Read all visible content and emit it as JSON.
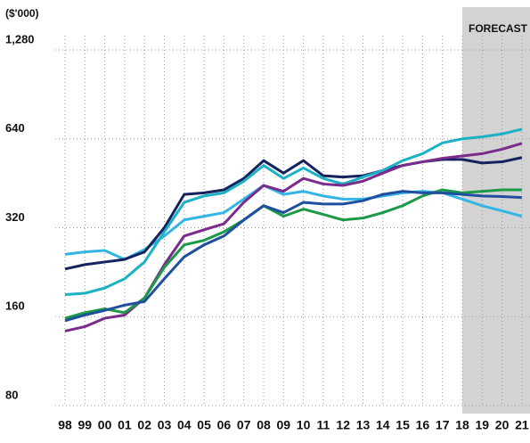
{
  "chart_data": {
    "type": "line",
    "y_label": "($'000)",
    "forecast": {
      "label": "FORECAST",
      "start": "18",
      "color": "#d3d3d3"
    },
    "categories": [
      "98",
      "99",
      "00",
      "01",
      "02",
      "03",
      "04",
      "05",
      "06",
      "07",
      "08",
      "09",
      "10",
      "11",
      "12",
      "13",
      "14",
      "15",
      "16",
      "17",
      "18",
      "19",
      "20",
      "21"
    ],
    "series": [
      {
        "color": "#33b5e5",
        "values": [
          260,
          265,
          268,
          250,
          270,
          300,
          340,
          350,
          360,
          400,
          445,
          415,
          425,
          410,
          400,
          400,
          410,
          420,
          425,
          420,
          400,
          380,
          365,
          350
        ]
      },
      {
        "color": "#14235e",
        "values": [
          232,
          240,
          245,
          250,
          265,
          320,
          415,
          420,
          430,
          470,
          540,
          490,
          540,
          480,
          475,
          480,
          500,
          520,
          535,
          545,
          545,
          530,
          535,
          553
        ]
      },
      {
        "color": "#1bb0c4",
        "values": [
          190,
          192,
          200,
          215,
          245,
          310,
          390,
          410,
          420,
          460,
          520,
          470,
          510,
          470,
          450,
          475,
          500,
          540,
          570,
          620,
          640,
          650,
          665,
          690
        ]
      },
      {
        "color": "#7a2b8c",
        "values": [
          143,
          148,
          158,
          162,
          185,
          240,
          300,
          315,
          330,
          390,
          445,
          425,
          470,
          450,
          445,
          460,
          490,
          520,
          535,
          550,
          560,
          570,
          590,
          618
        ]
      },
      {
        "color": "#1a9a46",
        "values": [
          158,
          165,
          170,
          165,
          185,
          235,
          280,
          290,
          310,
          340,
          380,
          350,
          370,
          355,
          340,
          345,
          360,
          380,
          410,
          430,
          420,
          425,
          430,
          430
        ]
      },
      {
        "color": "#1f4f9e",
        "values": [
          155,
          162,
          168,
          175,
          180,
          215,
          255,
          280,
          300,
          340,
          380,
          360,
          390,
          385,
          385,
          395,
          415,
          425,
          420,
          420,
          415,
          410,
          408,
          405
        ]
      }
    ],
    "ylim": [
      80,
      1280
    ],
    "log_y": true,
    "yticks": [
      80,
      160,
      320,
      640,
      {
        "value": 1280,
        "label": "1,280"
      }
    ],
    "grid": true
  }
}
